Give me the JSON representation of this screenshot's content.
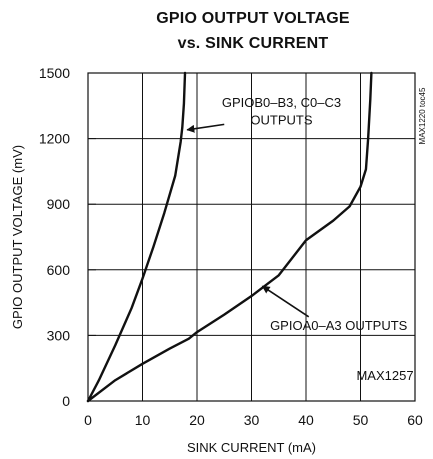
{
  "chart_data": {
    "type": "line",
    "title_lines": [
      "GPIO OUTPUT VOLTAGE",
      "vs. SINK CURRENT"
    ],
    "xlabel": "SINK CURRENT (mA)",
    "ylabel": "GPIO OUTPUT VOLTAGE (mV)",
    "xlim": [
      0,
      60
    ],
    "ylim": [
      0,
      1500
    ],
    "x_ticks": [
      0,
      10,
      20,
      30,
      40,
      50,
      60
    ],
    "y_ticks": [
      0,
      300,
      600,
      900,
      1200,
      1500
    ],
    "grid": true,
    "series": [
      {
        "name": "GPIOB0–B3, C0–C3 OUTPUTS",
        "points": [
          [
            0,
            0
          ],
          [
            2,
            95
          ],
          [
            5,
            255
          ],
          [
            8,
            425
          ],
          [
            10,
            560
          ],
          [
            12,
            705
          ],
          [
            14,
            860
          ],
          [
            16,
            1030
          ],
          [
            17,
            1185
          ],
          [
            17.3,
            1250
          ],
          [
            17.6,
            1360
          ],
          [
            17.8,
            1500
          ]
        ]
      },
      {
        "name": "GPIOA0–A3 OUTPUTS",
        "points": [
          [
            0,
            0
          ],
          [
            5,
            95
          ],
          [
            10,
            170
          ],
          [
            15,
            240
          ],
          [
            18.5,
            285
          ],
          [
            20,
            315
          ],
          [
            25,
            395
          ],
          [
            30,
            480
          ],
          [
            35,
            575
          ],
          [
            40,
            735
          ],
          [
            45,
            825
          ],
          [
            48,
            890
          ],
          [
            50,
            980
          ],
          [
            51,
            1060
          ],
          [
            51.4,
            1200
          ],
          [
            51.8,
            1380
          ],
          [
            52,
            1500
          ]
        ]
      }
    ],
    "annotations": [
      {
        "label_lines": [
          "GPIOB0–B3, C0–C3",
          "OUTPUTS"
        ],
        "arrow_from": [
          25,
          1265
        ],
        "arrow_to": [
          18.2,
          1240
        ]
      },
      {
        "label_lines": [
          "GPIOA0–A3 OUTPUTS"
        ],
        "arrow_from": [
          40.5,
          385
        ],
        "arrow_to": [
          32,
          525
        ]
      }
    ],
    "part_label": "MAX1257",
    "side_note": "MAX1220 toc45",
    "colors": {
      "line": "#111111",
      "grid": "#111111",
      "background": "#ffffff"
    }
  }
}
